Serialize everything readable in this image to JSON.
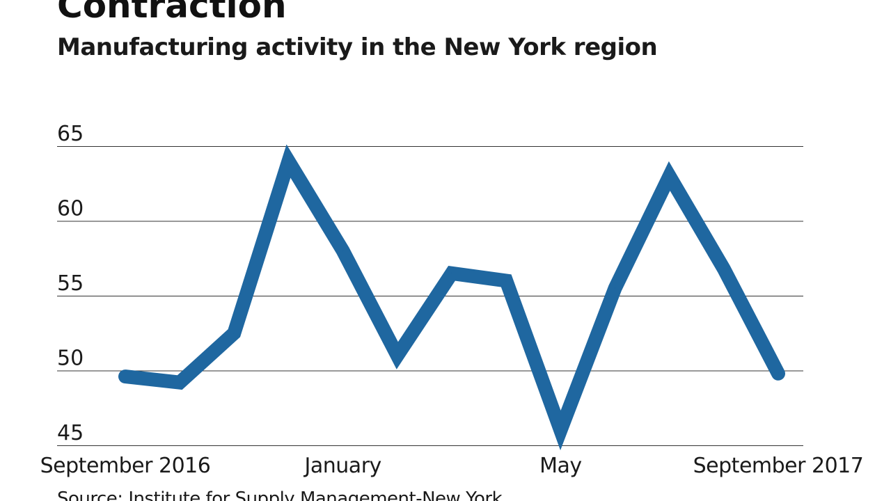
{
  "header": {
    "title": "Contraction",
    "subtitle": "Manufacturing activity in the New York region"
  },
  "footer": {
    "source": "Source: Institute for Supply Management-New York"
  },
  "colors": {
    "line": "#1f67a0",
    "grid": "#333333",
    "text": "#1a1a1a"
  },
  "chart_data": {
    "type": "line",
    "title": "Contraction",
    "subtitle": "Manufacturing activity in the New York region",
    "xlabel": "",
    "ylabel": "",
    "x": [
      "2016-09",
      "2016-10",
      "2016-11",
      "2016-12",
      "2017-01",
      "2017-02",
      "2017-03",
      "2017-04",
      "2017-05",
      "2017-06",
      "2017-07",
      "2017-08",
      "2017-09"
    ],
    "x_tick_labels": [
      {
        "x": "2016-09",
        "label": "September 2016"
      },
      {
        "x": "2017-01",
        "label": "January"
      },
      {
        "x": "2017-05",
        "label": "May"
      },
      {
        "x": "2017-09",
        "label": "September 2017"
      }
    ],
    "y_ticks": [
      45,
      50,
      55,
      60,
      65
    ],
    "ylim": [
      45,
      65
    ],
    "grid": true,
    "legend": "none",
    "series": [
      {
        "values": [
          49.6,
          49.2,
          52.5,
          64.0,
          58.0,
          51.0,
          56.5,
          56.0,
          46.0,
          55.5,
          63.0,
          56.8,
          49.8
        ]
      }
    ]
  }
}
